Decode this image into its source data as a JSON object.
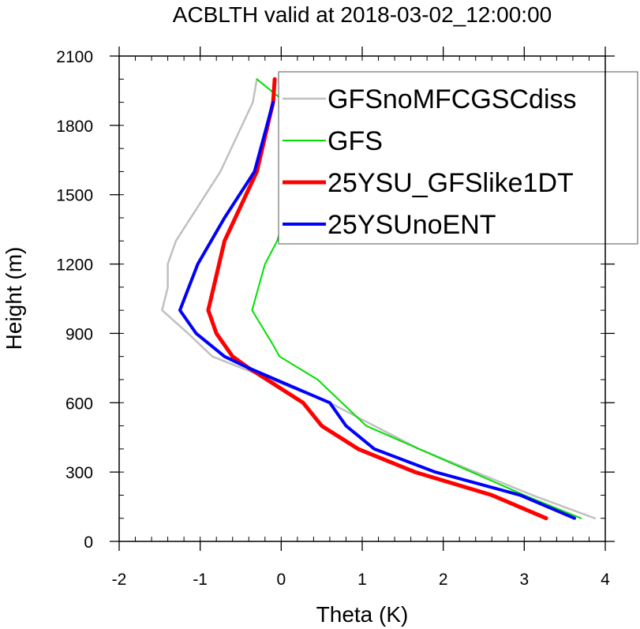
{
  "chart_data": {
    "type": "line",
    "title": "ACBLTH valid at 2018-03-02_12:00:00",
    "xlabel": "Theta (K)",
    "ylabel": "Height (m)",
    "xlim": [
      -2,
      4
    ],
    "ylim": [
      0,
      2100
    ],
    "xticks": [
      -2,
      -1,
      0,
      1,
      2,
      3,
      4
    ],
    "yticks": [
      0,
      300,
      600,
      900,
      1200,
      1500,
      1800,
      2100
    ],
    "x_minor_step": 0.2,
    "y_minor_step": 100,
    "grid": false,
    "legend_position": "top-right",
    "series": [
      {
        "name": "GFSnoMFCGSCdiss",
        "color": "#c0c0c0",
        "width": 2.5,
        "points": [
          [
            3.87,
            100
          ],
          [
            3.1,
            200
          ],
          [
            1.7,
            400
          ],
          [
            0.6,
            600
          ],
          [
            -0.85,
            800
          ],
          [
            -1.15,
            900
          ],
          [
            -1.47,
            1000
          ],
          [
            -1.4,
            1100
          ],
          [
            -1.4,
            1200
          ],
          [
            -1.3,
            1300
          ],
          [
            -0.75,
            1600
          ],
          [
            -0.35,
            1900
          ],
          [
            -0.3,
            2000
          ]
        ]
      },
      {
        "name": "GFS",
        "color": "#00e000",
        "width": 2,
        "points": [
          [
            3.7,
            100
          ],
          [
            3.0,
            200
          ],
          [
            2.35,
            300
          ],
          [
            1.05,
            500
          ],
          [
            0.45,
            700
          ],
          [
            -0.02,
            800
          ],
          [
            -0.1,
            850
          ],
          [
            -0.36,
            1000
          ],
          [
            -0.2,
            1200
          ],
          [
            -0.05,
            1300
          ],
          [
            0.12,
            1500
          ],
          [
            0.12,
            1600
          ],
          [
            0.1,
            1800
          ],
          [
            0.05,
            1900
          ],
          [
            -0.3,
            2000
          ]
        ]
      },
      {
        "name": "25YSU_GFSlike1DT",
        "color": "#ff0000",
        "width": 5,
        "points": [
          [
            3.27,
            100
          ],
          [
            2.6,
            200
          ],
          [
            1.65,
            300
          ],
          [
            0.95,
            400
          ],
          [
            0.5,
            500
          ],
          [
            0.27,
            600
          ],
          [
            -0.4,
            750
          ],
          [
            -0.6,
            800
          ],
          [
            -0.8,
            900
          ],
          [
            -0.9,
            1000
          ],
          [
            -0.7,
            1300
          ],
          [
            -0.3,
            1600
          ],
          [
            -0.1,
            1900
          ],
          [
            -0.08,
            2000
          ]
        ]
      },
      {
        "name": "25YSUnoENT",
        "color": "#0000ff",
        "width": 4,
        "points": [
          [
            3.62,
            100
          ],
          [
            2.95,
            200
          ],
          [
            1.9,
            300
          ],
          [
            1.15,
            400
          ],
          [
            0.8,
            500
          ],
          [
            0.6,
            600
          ],
          [
            -0.4,
            750
          ],
          [
            -0.7,
            800
          ],
          [
            -1.05,
            900
          ],
          [
            -1.25,
            1000
          ],
          [
            -1.03,
            1200
          ],
          [
            -0.7,
            1400
          ],
          [
            -0.33,
            1600
          ],
          [
            -0.1,
            1900
          ]
        ]
      }
    ]
  }
}
